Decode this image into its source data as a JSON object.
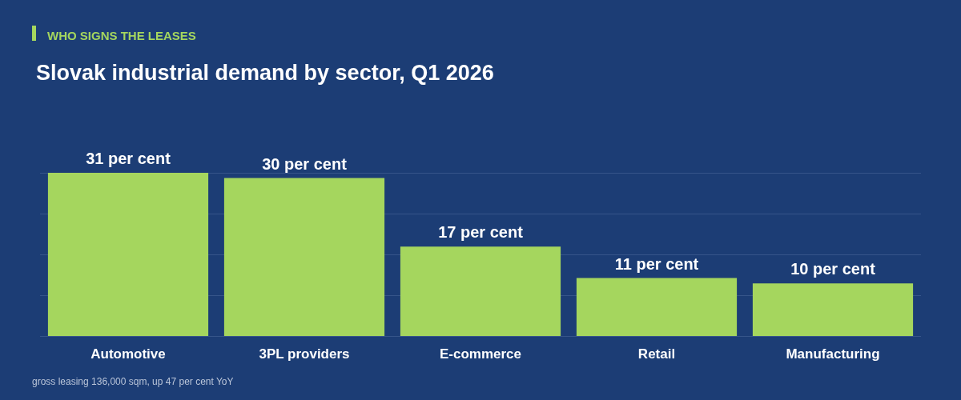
{
  "chart_data": {
    "type": "bar",
    "subtitle": "WHO SIGNS THE LEASES",
    "title": "Slovak industrial demand by sector, Q1 2026",
    "categories": [
      "Automotive",
      "3PL providers",
      "E-commerce",
      "Retail",
      "Manufacturing"
    ],
    "values": [
      31,
      30,
      17,
      11,
      10
    ],
    "value_labels": [
      "31 per cent",
      "30 per cent",
      "17 per cent",
      "11 per cent",
      "10 per cent"
    ],
    "color": "#a5d65e",
    "ylim": [
      0,
      31
    ],
    "yticks": [
      {
        "value": 0,
        "label": null
      },
      {
        "value": 7.75,
        "label": null
      },
      {
        "value": 15.5,
        "label": null
      },
      {
        "value": 23.25,
        "label": null
      },
      {
        "value": 31,
        "label": null
      }
    ],
    "grid": "y",
    "tick_labels": "x",
    "annotations": [
      "gross leasing 136,000 sqm, up 47 per cent YoY"
    ]
  }
}
